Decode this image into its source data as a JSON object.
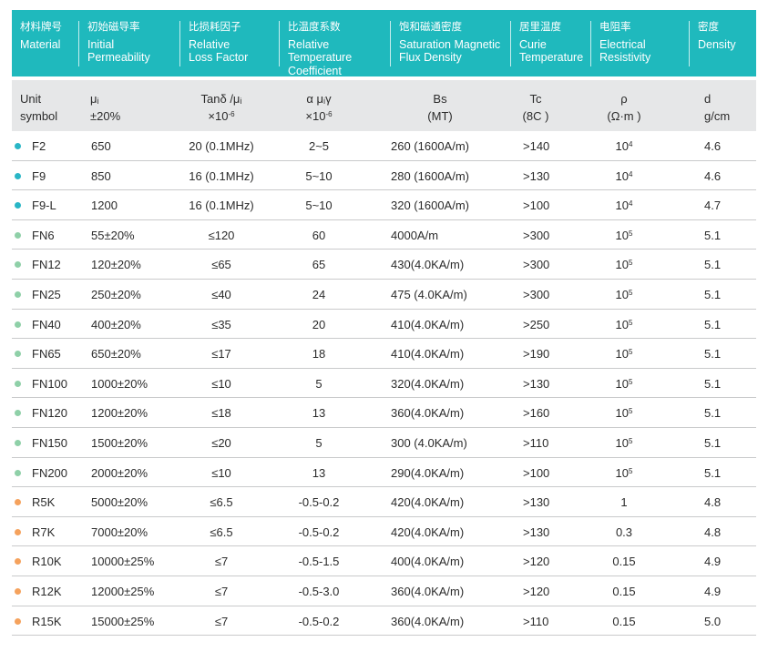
{
  "header": {
    "columns": [
      {
        "zh": "材料牌号",
        "en": "Material"
      },
      {
        "zh": "初始磁导率",
        "en": "Initial\nPermeability"
      },
      {
        "zh": "比损耗因子",
        "en": "Relative\nLoss Factor"
      },
      {
        "zh": "比温度系数",
        "en": "Relative Temperature\nCoefficient"
      },
      {
        "zh": "饱和磁通密度",
        "en": "Saturation Magnetic\nFlux Density"
      },
      {
        "zh": "居里温度",
        "en": "Curie\nTemperature"
      },
      {
        "zh": "电阻率",
        "en": "Electrical\nResistivity"
      },
      {
        "zh": "密度",
        "en": "Density"
      }
    ]
  },
  "units": {
    "unit_symbol": "Unit\nsymbol",
    "perm": "μᵢ\n±20%",
    "loss_a": "Tanδ /μᵢ",
    "loss_b": "×10",
    "loss_exp": "-6",
    "temp_a": "α μᵢγ",
    "temp_b": "×10",
    "temp_exp": "-6",
    "bs": "Bs\n(MT)",
    "tc": "Tc\n(8C )",
    "rho": "ρ\n(Ω·m )",
    "den": "d\ng/cm"
  },
  "colors": {
    "header_bg": "#1fb9bd",
    "subheader_bg": "#e6e7e8",
    "dot_f": "#29b6c6",
    "dot_fn": "#8fd0a8",
    "dot_r": "#f5a25d"
  },
  "rows": [
    {
      "dot": "f",
      "mat": "F2",
      "perm": "650",
      "loss": "20 (0.1MHz)",
      "temp": "2~5",
      "bs": "260 (1600A/m)",
      "tc": ">140",
      "rho": "10",
      "rho_exp": "4",
      "den": "4.6"
    },
    {
      "dot": "f",
      "mat": "F9",
      "perm": "850",
      "loss": "16 (0.1MHz)",
      "temp": "5~10",
      "bs": "280 (1600A/m)",
      "tc": ">130",
      "rho": "10",
      "rho_exp": "4",
      "den": "4.6"
    },
    {
      "dot": "f",
      "mat": "F9-L",
      "perm": "1200",
      "loss": "16 (0.1MHz)",
      "temp": "5~10",
      "bs": "320 (1600A/m)",
      "tc": ">100",
      "rho": "10",
      "rho_exp": "4",
      "den": "4.7"
    },
    {
      "dot": "fn",
      "mat": "FN6",
      "perm": "55±20%",
      "loss": "≤120",
      "temp": "60",
      "bs": "4000A/m",
      "tc": ">300",
      "rho": "10",
      "rho_exp": "5",
      "den": "5.1"
    },
    {
      "dot": "fn",
      "mat": "FN12",
      "perm": "120±20%",
      "loss": "≤65",
      "temp": "65",
      "bs": "430(4.0KA/m)",
      "tc": ">300",
      "rho": "10",
      "rho_exp": "5",
      "den": "5.1"
    },
    {
      "dot": "fn",
      "mat": "FN25",
      "perm": "250±20%",
      "loss": "≤40",
      "temp": "24",
      "bs": "475 (4.0KA/m)",
      "tc": ">300",
      "rho": "10",
      "rho_exp": "5",
      "den": "5.1"
    },
    {
      "dot": "fn",
      "mat": "FN40",
      "perm": "400±20%",
      "loss": "≤35",
      "temp": "20",
      "bs": "410(4.0KA/m)",
      "tc": ">250",
      "rho": "10",
      "rho_exp": "5",
      "den": "5.1"
    },
    {
      "dot": "fn",
      "mat": "FN65",
      "perm": "650±20%",
      "loss": "≤17",
      "temp": "18",
      "bs": "410(4.0KA/m)",
      "tc": ">190",
      "rho": "10",
      "rho_exp": "5",
      "den": "5.1"
    },
    {
      "dot": "fn",
      "mat": "FN100",
      "perm": "1000±20%",
      "loss": "≤10",
      "temp": "5",
      "bs": "320(4.0KA/m)",
      "tc": ">130",
      "rho": "10",
      "rho_exp": "5",
      "den": "5.1"
    },
    {
      "dot": "fn",
      "mat": "FN120",
      "perm": "1200±20%",
      "loss": "≤18",
      "temp": "13",
      "bs": "360(4.0KA/m)",
      "tc": ">160",
      "rho": "10",
      "rho_exp": "5",
      "den": "5.1"
    },
    {
      "dot": "fn",
      "mat": "FN150",
      "perm": "1500±20%",
      "loss": "≤20",
      "temp": "5",
      "bs": "300 (4.0KA/m)",
      "tc": ">110",
      "rho": "10",
      "rho_exp": "5",
      "den": "5.1"
    },
    {
      "dot": "fn",
      "mat": "FN200",
      "perm": "2000±20%",
      "loss": "≤10",
      "temp": "13",
      "bs": "290(4.0KA/m)",
      "tc": ">100",
      "rho": "10",
      "rho_exp": "5",
      "den": "5.1"
    },
    {
      "dot": "r",
      "mat": "R5K",
      "perm": "5000±20%",
      "loss": "≤6.5",
      "temp": "-0.5-0.2",
      "bs": "420(4.0KA/m)",
      "tc": ">130",
      "rho": "1",
      "rho_exp": "",
      "den": "4.8"
    },
    {
      "dot": "r",
      "mat": "R7K",
      "perm": "7000±20%",
      "loss": "≤6.5",
      "temp": "-0.5-0.2",
      "bs": "420(4.0KA/m)",
      "tc": ">130",
      "rho": "0.3",
      "rho_exp": "",
      "den": "4.8"
    },
    {
      "dot": "r",
      "mat": "R10K",
      "perm": "10000±25%",
      "loss": "≤7",
      "temp": "-0.5-1.5",
      "bs": "400(4.0KA/m)",
      "tc": ">120",
      "rho": "0.15",
      "rho_exp": "",
      "den": "4.9"
    },
    {
      "dot": "r",
      "mat": "R12K",
      "perm": "12000±25%",
      "loss": "≤7",
      "temp": "-0.5-3.0",
      "bs": "360(4.0KA/m)",
      "tc": ">120",
      "rho": "0.15",
      "rho_exp": "",
      "den": "4.9"
    },
    {
      "dot": "r",
      "mat": "R15K",
      "perm": "15000±25%",
      "loss": "≤7",
      "temp": "-0.5-0.2",
      "bs": "360(4.0KA/m)",
      "tc": ">110",
      "rho": "0.15",
      "rho_exp": "",
      "den": "5.0"
    }
  ]
}
